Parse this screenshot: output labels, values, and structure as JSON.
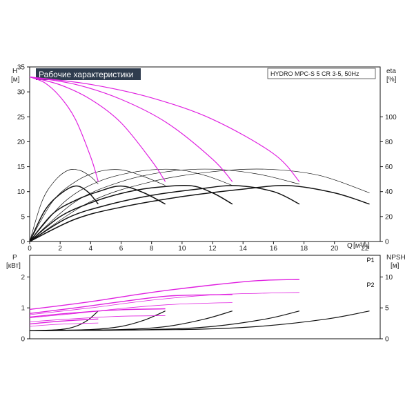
{
  "chart_data": {
    "type": "line",
    "title": "Рабочие характеристики",
    "model": "HYDRO MPC-S 5 CR 3-5, 50Hz",
    "colors": {
      "title_bg": "#2f3c4e",
      "main_curve": "#1d4e78",
      "pink": "#e020e0",
      "black": "#111111",
      "axis": "#111111"
    },
    "top": {
      "ylabel_left": "H",
      "unit_left": "[м]",
      "ylabel_right": "eta",
      "unit_right": "[%]",
      "xlabel": "Q",
      "xunit": "[м³/ч]",
      "xlim": [
        0,
        23
      ],
      "ylim": [
        0,
        35
      ],
      "eta_lim": [
        0,
        140
      ],
      "x_ticks": [
        0,
        2,
        4,
        6,
        8,
        10,
        12,
        14,
        16,
        18,
        20,
        22
      ],
      "y_ticks": [
        0,
        5,
        10,
        15,
        20,
        25,
        30,
        35
      ],
      "eta_ticks": [
        0,
        20,
        40,
        60,
        80,
        100
      ],
      "head_curves": [
        {
          "color": "main",
          "width": 1.4,
          "points": [
            [
              0,
              33
            ],
            [
              4,
              32
            ],
            [
              8,
              30.6
            ],
            [
              12,
              28.3
            ],
            [
              16,
              24.5
            ],
            [
              20,
              18.2
            ],
            [
              22.3,
              12
            ]
          ]
        },
        {
          "color": "pink",
          "width": 1.2,
          "points": [
            [
              0,
              33
            ],
            [
              4,
              31.5
            ],
            [
              8,
              28.8
            ],
            [
              12,
              24.5
            ],
            [
              16,
              17.6
            ],
            [
              17.7,
              12
            ]
          ]
        },
        {
          "color": "pink",
          "width": 1.2,
          "points": [
            [
              0,
              33
            ],
            [
              3,
              31.5
            ],
            [
              6,
              28.5
            ],
            [
              9,
              23.8
            ],
            [
              12,
              16.5
            ],
            [
              13.3,
              12
            ]
          ]
        },
        {
          "color": "pink",
          "width": 1.2,
          "points": [
            [
              0,
              33
            ],
            [
              2,
              31.4
            ],
            [
              4,
              28.5
            ],
            [
              6,
              23.8
            ],
            [
              8,
              16.2
            ],
            [
              8.9,
              12
            ]
          ]
        },
        {
          "color": "pink",
          "width": 1.2,
          "points": [
            [
              0,
              33
            ],
            [
              1,
              31.8
            ],
            [
              2,
              29
            ],
            [
              3,
              24.5
            ],
            [
              4,
              17
            ],
            [
              4.5,
              12
            ]
          ]
        }
      ],
      "eta_curves": [
        {
          "color": "black",
          "width": 0.7,
          "points": [
            [
              0,
              0
            ],
            [
              0.8,
              32
            ],
            [
              1.6,
              48
            ],
            [
              2.5,
              57
            ],
            [
              3.3,
              57
            ],
            [
              4,
              52
            ],
            [
              4.5,
              46
            ]
          ]
        },
        {
          "color": "black",
          "width": 0.7,
          "points": [
            [
              0,
              0
            ],
            [
              1.5,
              32
            ],
            [
              3,
              48
            ],
            [
              4.5,
              56
            ],
            [
              6,
              57.5
            ],
            [
              7.5,
              52
            ],
            [
              8.9,
              45
            ]
          ]
        },
        {
          "color": "black",
          "width": 0.7,
          "points": [
            [
              0,
              0
            ],
            [
              2.3,
              32
            ],
            [
              4.5,
              48
            ],
            [
              7,
              56
            ],
            [
              9.5,
              57.8
            ],
            [
              11.5,
              53
            ],
            [
              13.3,
              45
            ]
          ]
        },
        {
          "color": "black",
          "width": 0.7,
          "points": [
            [
              0,
              0
            ],
            [
              3,
              32
            ],
            [
              6,
              48
            ],
            [
              9,
              56
            ],
            [
              12,
              58
            ],
            [
              15,
              54
            ],
            [
              17.7,
              46
            ]
          ]
        },
        {
          "color": "black",
          "width": 0.7,
          "points": [
            [
              0,
              0
            ],
            [
              4,
              32
            ],
            [
              8,
              48
            ],
            [
              12,
              56
            ],
            [
              15.5,
              58
            ],
            [
              19,
              53
            ],
            [
              22.3,
              39
            ]
          ]
        }
      ],
      "eta_curves_bold": [
        {
          "color": "black",
          "width": 1.5,
          "points": [
            [
              0,
              0
            ],
            [
              1,
              25
            ],
            [
              2,
              38
            ],
            [
              3,
              44.5
            ],
            [
              3.8,
              40
            ],
            [
              4.5,
              30
            ]
          ]
        },
        {
          "color": "black",
          "width": 1.5,
          "points": [
            [
              0,
              0
            ],
            [
              1.5,
              22
            ],
            [
              3,
              33
            ],
            [
              4.5,
              40
            ],
            [
              6,
              44.5
            ],
            [
              7.5,
              39
            ],
            [
              8.9,
              30
            ]
          ]
        },
        {
          "color": "black",
          "width": 1.5,
          "points": [
            [
              0,
              0
            ],
            [
              2,
              20
            ],
            [
              4,
              31
            ],
            [
              6,
              38.5
            ],
            [
              8,
              43
            ],
            [
              10.5,
              44.8
            ],
            [
              12,
              39
            ],
            [
              13.3,
              30
            ]
          ]
        },
        {
          "color": "black",
          "width": 1.5,
          "points": [
            [
              0,
              0
            ],
            [
              2.5,
              19
            ],
            [
              5,
              29
            ],
            [
              8,
              37
            ],
            [
              11,
              42
            ],
            [
              13.5,
              44.8
            ],
            [
              16,
              40
            ],
            [
              17.7,
              30
            ]
          ]
        },
        {
          "color": "black",
          "width": 1.5,
          "points": [
            [
              0,
              0
            ],
            [
              3,
              18
            ],
            [
              6,
              27.5
            ],
            [
              10,
              36
            ],
            [
              14,
              42
            ],
            [
              17,
              44.8
            ],
            [
              20,
              39
            ],
            [
              22.3,
              30
            ]
          ]
        }
      ]
    },
    "bottom": {
      "ylabel_left": "P",
      "unit_left": "[кВт]",
      "ylabel_right": "NPSH",
      "unit_right": "[м]",
      "xlim": [
        0,
        23
      ],
      "ylim": [
        0,
        2.7
      ],
      "npsh_lim": [
        0,
        13.5
      ],
      "y_ticks": [
        0,
        1,
        2
      ],
      "npsh_ticks": [
        0,
        5,
        10
      ],
      "power_curves": [
        {
          "label": "P1",
          "color": "main",
          "width": 1.4,
          "points": [
            [
              0,
              1.05
            ],
            [
              4,
              1.3
            ],
            [
              8,
              1.68
            ],
            [
              12,
              1.93
            ],
            [
              16,
              2.12
            ],
            [
              20,
              2.3
            ],
            [
              22.3,
              2.37
            ]
          ]
        },
        {
          "label": "P2",
          "color": "main",
          "width": 0.8,
          "points": [
            [
              0,
              0.85
            ],
            [
              4,
              1.1
            ],
            [
              8,
              1.42
            ],
            [
              12,
              1.62
            ],
            [
              16,
              1.78
            ],
            [
              20,
              1.88
            ],
            [
              22.3,
              1.9
            ]
          ]
        },
        {
          "color": "pink",
          "width": 1.4,
          "points": [
            [
              0,
              0.95
            ],
            [
              4,
              1.2
            ],
            [
              8,
              1.5
            ],
            [
              12,
              1.74
            ],
            [
              15,
              1.88
            ],
            [
              17.7,
              1.92
            ]
          ]
        },
        {
          "color": "pink",
          "width": 0.8,
          "points": [
            [
              0,
              0.78
            ],
            [
              4,
              1.0
            ],
            [
              8,
              1.25
            ],
            [
              12,
              1.42
            ],
            [
              15,
              1.47
            ],
            [
              17.7,
              1.5
            ]
          ]
        },
        {
          "color": "pink",
          "width": 1.4,
          "points": [
            [
              0,
              0.82
            ],
            [
              3,
              1.0
            ],
            [
              6,
              1.2
            ],
            [
              9,
              1.38
            ],
            [
              11.5,
              1.42
            ],
            [
              13.3,
              1.43
            ]
          ]
        },
        {
          "color": "pink",
          "width": 0.8,
          "points": [
            [
              0,
              0.68
            ],
            [
              3,
              0.82
            ],
            [
              6,
              0.98
            ],
            [
              9,
              1.1
            ],
            [
              11.5,
              1.15
            ],
            [
              13.3,
              1.17
            ]
          ]
        },
        {
          "color": "pink",
          "width": 1.4,
          "points": [
            [
              0,
              0.7
            ],
            [
              2,
              0.8
            ],
            [
              4,
              0.88
            ],
            [
              6,
              0.94
            ],
            [
              8.9,
              0.97
            ]
          ]
        },
        {
          "color": "pink",
          "width": 0.8,
          "points": [
            [
              0,
              0.55
            ],
            [
              2,
              0.62
            ],
            [
              4,
              0.68
            ],
            [
              6,
              0.73
            ],
            [
              8.9,
              0.75
            ]
          ]
        },
        {
          "color": "pink",
          "width": 1.4,
          "points": [
            [
              0,
              0.48
            ],
            [
              1.5,
              0.55
            ],
            [
              3,
              0.6
            ],
            [
              4.5,
              0.64
            ]
          ]
        },
        {
          "color": "pink",
          "width": 0.8,
          "points": [
            [
              0,
              0.4
            ],
            [
              1.5,
              0.46
            ],
            [
              3,
              0.49
            ],
            [
              4.5,
              0.51
            ]
          ]
        }
      ],
      "npsh_curves": [
        {
          "color": "black",
          "width": 1.2,
          "points": [
            [
              0,
              1.3
            ],
            [
              2,
              1.5
            ],
            [
              3,
              2
            ],
            [
              3.8,
              3
            ],
            [
              4.5,
              4.5
            ]
          ]
        },
        {
          "color": "black",
          "width": 1.2,
          "points": [
            [
              0,
              1.3
            ],
            [
              4,
              1.5
            ],
            [
              6,
              2
            ],
            [
              7.5,
              3
            ],
            [
              8.9,
              4.5
            ]
          ]
        },
        {
          "color": "black",
          "width": 1.2,
          "points": [
            [
              0,
              1.3
            ],
            [
              6,
              1.5
            ],
            [
              9,
              2
            ],
            [
              11.5,
              3.2
            ],
            [
              13.3,
              4.5
            ]
          ]
        },
        {
          "color": "black",
          "width": 1.2,
          "points": [
            [
              0,
              1.3
            ],
            [
              8,
              1.5
            ],
            [
              12,
              2
            ],
            [
              15.5,
              3.2
            ],
            [
              17.7,
              4.5
            ]
          ]
        },
        {
          "color": "black",
          "width": 1.2,
          "points": [
            [
              0,
              1.3
            ],
            [
              10,
              1.5
            ],
            [
              15,
              2
            ],
            [
              19.5,
              3.2
            ],
            [
              22.3,
              4.5
            ]
          ]
        }
      ]
    }
  }
}
